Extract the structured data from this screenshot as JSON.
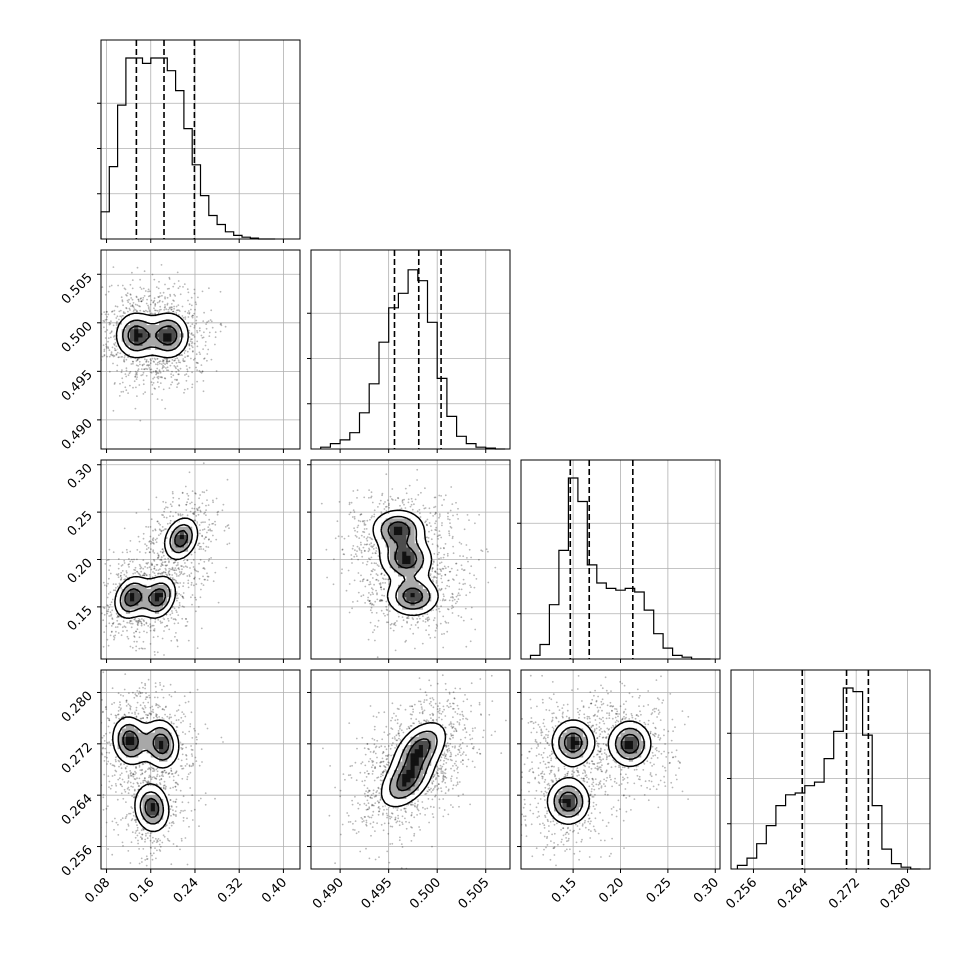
{
  "chart_data": {
    "type": "corner",
    "parameters": [
      {
        "range": [
          0.07,
          0.43
        ],
        "ticks": [
          0.08,
          0.16,
          0.24,
          0.32,
          0.4
        ],
        "tick_labels": [
          "0.08",
          "0.16",
          "0.24",
          "0.32",
          "0.40"
        ],
        "quantiles": [
          0.134,
          0.184,
          0.239
        ],
        "histogram": {
          "edges": [
            0.07,
            0.085,
            0.1,
            0.115,
            0.13,
            0.145,
            0.16,
            0.175,
            0.19,
            0.205,
            0.22,
            0.235,
            0.25,
            0.265,
            0.28,
            0.295,
            0.31,
            0.325,
            0.34,
            0.355,
            0.37,
            0.385
          ],
          "counts": [
            0.15,
            0.4,
            0.74,
            1.0,
            1.0,
            0.97,
            1.0,
            1.0,
            0.93,
            0.82,
            0.61,
            0.41,
            0.24,
            0.13,
            0.08,
            0.04,
            0.02,
            0.01,
            0.005,
            0.0,
            0.0
          ]
        }
      },
      {
        "range": [
          0.487,
          0.5075
        ],
        "ticks": [
          0.49,
          0.495,
          0.5,
          0.505
        ],
        "tick_labels": [
          "0.490",
          "0.495",
          "0.500",
          "0.505"
        ],
        "quantiles": [
          0.4956,
          0.4981,
          0.5004
        ],
        "histogram": {
          "edges": [
            0.488,
            0.489,
            0.49,
            0.491,
            0.492,
            0.493,
            0.494,
            0.495,
            0.496,
            0.497,
            0.498,
            0.499,
            0.5,
            0.501,
            0.502,
            0.503,
            0.504,
            0.505,
            0.506,
            0.507
          ],
          "counts": [
            0.01,
            0.03,
            0.05,
            0.09,
            0.2,
            0.36,
            0.59,
            0.78,
            0.86,
            0.99,
            0.93,
            0.7,
            0.39,
            0.18,
            0.07,
            0.03,
            0.01,
            0.005,
            0.0
          ]
        }
      },
      {
        "range": [
          0.095,
          0.305
        ],
        "ticks": [
          0.15,
          0.2,
          0.25,
          0.3
        ],
        "tick_labels": [
          "0.15",
          "0.20",
          "0.25",
          "0.30"
        ],
        "quantiles": [
          0.147,
          0.167,
          0.213
        ],
        "histogram": {
          "edges": [
            0.105,
            0.115,
            0.125,
            0.135,
            0.145,
            0.155,
            0.165,
            0.175,
            0.185,
            0.195,
            0.205,
            0.215,
            0.225,
            0.235,
            0.245,
            0.255,
            0.265,
            0.275,
            0.285,
            0.295
          ],
          "counts": [
            0.02,
            0.08,
            0.3,
            0.6,
            1.0,
            0.87,
            0.52,
            0.42,
            0.39,
            0.38,
            0.39,
            0.37,
            0.27,
            0.14,
            0.06,
            0.02,
            0.01,
            0.0,
            0.0
          ]
        }
      },
      {
        "range": [
          0.2525,
          0.2835
        ],
        "ticks": [
          0.256,
          0.264,
          0.272,
          0.28
        ],
        "tick_labels": [
          "0.256",
          "0.264",
          "0.272",
          "0.280"
        ],
        "quantiles": [
          0.2636,
          0.2705,
          0.2739
        ],
        "histogram": {
          "edges": [
            0.2535,
            0.255,
            0.2565,
            0.258,
            0.2595,
            0.261,
            0.2625,
            0.264,
            0.2655,
            0.267,
            0.2685,
            0.27,
            0.2715,
            0.273,
            0.2745,
            0.276,
            0.2775,
            0.279,
            0.2805,
            0.282
          ],
          "counts": [
            0.02,
            0.06,
            0.14,
            0.24,
            0.35,
            0.41,
            0.42,
            0.46,
            0.48,
            0.61,
            0.76,
            1.0,
            0.98,
            0.74,
            0.35,
            0.11,
            0.03,
            0.01,
            0.0
          ]
        }
      }
    ],
    "pairs": [
      {
        "x": 0,
        "y": 1,
        "peaks": [
          [
            0.133,
            0.4987
          ],
          [
            0.193,
            0.4987
          ]
        ],
        "sigma": [
          0.04,
          0.0026
        ],
        "rho": 0.0,
        "contour_levels": [
          0.28,
          0.55,
          0.8
        ]
      },
      {
        "x": 0,
        "y": 2,
        "peaks": [
          [
            0.125,
            0.16
          ],
          [
            0.175,
            0.16
          ],
          [
            0.215,
            0.222
          ]
        ],
        "sigma": [
          0.034,
          0.025
        ],
        "rho": 0.25,
        "contour_levels": [
          0.28,
          0.55,
          0.8
        ]
      },
      {
        "x": 1,
        "y": 2,
        "peaks": [
          [
            0.4975,
            0.161
          ],
          [
            0.4968,
            0.2
          ],
          [
            0.496,
            0.232
          ]
        ],
        "sigma": [
          0.003,
          0.023
        ],
        "rho": 0.0,
        "contour_levels": [
          0.28,
          0.55,
          0.8
        ]
      },
      {
        "x": 0,
        "y": 3,
        "peaks": [
          [
            0.122,
            0.2725
          ],
          [
            0.18,
            0.272
          ],
          [
            0.162,
            0.262
          ]
        ],
        "sigma": [
          0.035,
          0.0042
        ],
        "rho": -0.1,
        "contour_levels": [
          0.28,
          0.55,
          0.8
        ]
      },
      {
        "x": 1,
        "y": 3,
        "peaks": [
          [
            0.4983,
            0.2715
          ],
          [
            0.4968,
            0.266
          ]
        ],
        "sigma": [
          0.003,
          0.0045
        ],
        "rho": 0.45,
        "contour_levels": [
          0.28,
          0.55,
          0.8
        ]
      },
      {
        "x": 2,
        "y": 3,
        "peaks": [
          [
            0.15,
            0.2722
          ],
          [
            0.21,
            0.272
          ],
          [
            0.145,
            0.263
          ]
        ],
        "sigma": [
          0.025,
          0.004
        ],
        "rho": 0.0,
        "contour_levels": [
          0.28,
          0.55,
          0.8
        ]
      }
    ],
    "grid": true,
    "title": "",
    "axis_labels": []
  }
}
